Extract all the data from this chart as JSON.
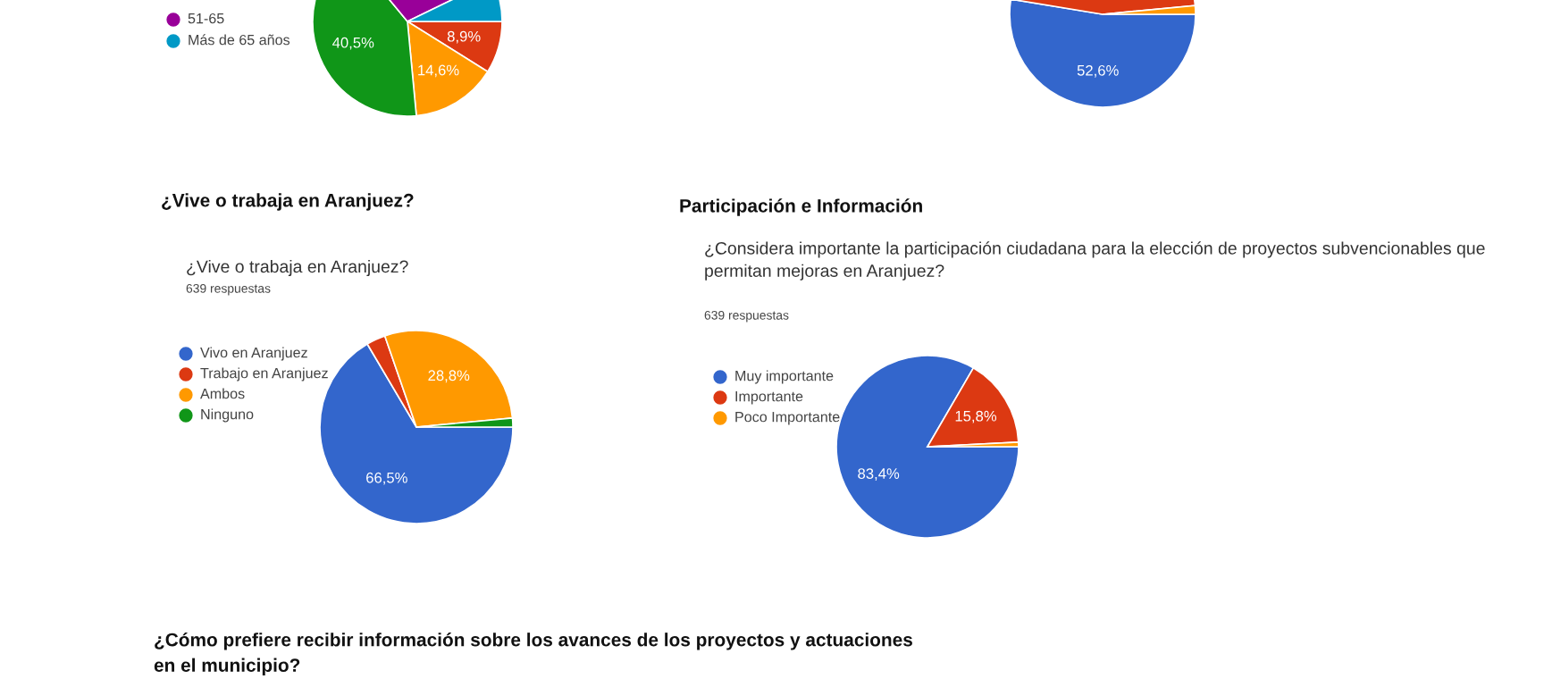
{
  "chart_data": [
    {
      "type": "pie",
      "categories": [
        null,
        null,
        null,
        "51-65",
        "Más de 65 años"
      ],
      "values": [
        8.9,
        14.6,
        40.5,
        28.8,
        7.2
      ],
      "colors": [
        "#dc3912",
        "#ff9900",
        "#109618",
        "#990099",
        "#0099c6"
      ],
      "value_labels": [
        "8,9%",
        "14,6%",
        "40,5%",
        null,
        null
      ],
      "legend": "left"
    },
    {
      "type": "pie",
      "categories": [
        null,
        null,
        null
      ],
      "values": [
        52.6,
        45.9,
        1.5
      ],
      "colors": [
        "#3366cc",
        "#dc3912",
        "#ff9900"
      ],
      "value_labels": [
        "52,6%",
        null,
        null
      ]
    },
    {
      "type": "pie",
      "title": "¿Vive o trabaja en Aranjuez?",
      "subtitle": "639 respuestas",
      "annotations": [
        "¿Vive o trabaja en Aranjuez?"
      ],
      "categories": [
        "Vivo en Aranjuez",
        "Trabajo en Aranjuez",
        "Ambos",
        "Ninguno"
      ],
      "values": [
        66.5,
        3.2,
        28.8,
        1.5
      ],
      "colors": [
        "#3366cc",
        "#dc3912",
        "#ff9900",
        "#109618"
      ],
      "value_labels": [
        "66,5%",
        null,
        "28,8%",
        null
      ],
      "legend": "left"
    },
    {
      "type": "pie",
      "title": "¿Considera importante la participación ciudadana para la elección de proyectos subvencionables que permitan mejoras en Aranjuez?",
      "subtitle": "639 respuestas",
      "annotations": [
        "Participación e Información",
        "¿Cómo prefiere recibir información sobre los avances de los proyectos y actuaciones\nen el municipio?"
      ],
      "categories": [
        "Muy importante",
        "Importante",
        "Poco Importante"
      ],
      "values": [
        83.4,
        15.8,
        0.8
      ],
      "colors": [
        "#3366cc",
        "#dc3912",
        "#ff9900"
      ],
      "value_labels": [
        "83,4%",
        "15,8%",
        null
      ],
      "legend": "left"
    }
  ]
}
